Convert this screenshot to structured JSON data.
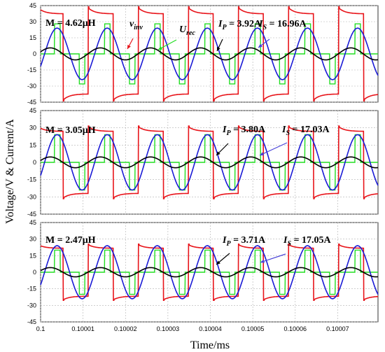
{
  "chart_data": {
    "type": "line",
    "ylabel": "Voltage/V & Current/A",
    "xlabel": "Time/ms",
    "xlim": [
      0.1,
      0.1000795
    ],
    "ylim": [
      -45,
      45
    ],
    "y_ticks": [
      45,
      30,
      15,
      0,
      -15,
      -30,
      -45
    ],
    "x_ticks": [
      "0.1",
      "0.10001",
      "0.10002",
      "0.10003",
      "0.10004",
      "0.10005",
      "0.10006",
      "0.10007"
    ],
    "grid": true,
    "period_ms": 1.18e-05,
    "series_styles": [
      {
        "id": "v_inv",
        "color": "#e8141a"
      },
      {
        "id": "u_rec",
        "color": "#22dd22"
      },
      {
        "id": "i_p",
        "color": "#000000"
      },
      {
        "id": "i_s",
        "color": "#1a1ad6"
      }
    ],
    "panels": [
      {
        "M_label": "M = 4.62μH",
        "Ip_label": "I",
        "Ip_sub": "P",
        "Ip_value": " = 3.92A",
        "Is_label": "I",
        "Is_sub": "S",
        "Is_value": " = 16.96A",
        "vinv_label": "v",
        "vinv_sub": "inv",
        "urec_label": "U",
        "urec_sub": "rec",
        "v_inv_amp": 43,
        "u_rec_amp": 28,
        "i_p_amp": 5.6,
        "i_s_amp": 24,
        "i_s_phase": -0.5,
        "i_p_phase": 0.35,
        "v_inv_offset": 0.05
      },
      {
        "M_label": "M = 3.05μH",
        "Ip_label": "I",
        "Ip_sub": "P",
        "Ip_value": " = 3.80A",
        "Is_label": "I",
        "Is_sub": "S",
        "Is_value": " = 17.03A",
        "v_inv_amp": 31,
        "u_rec_amp": 24,
        "i_p_amp": 4.7,
        "i_s_amp": 24,
        "i_s_phase": -0.5,
        "i_p_phase": 0.35,
        "v_inv_offset": 0.05
      },
      {
        "M_label": "M = 2.47μH",
        "Ip_label": "I",
        "Ip_sub": "P",
        "Ip_value": " = 3.71A",
        "Is_label": "I",
        "Is_sub": "S",
        "Is_value": " = 17.05A",
        "v_inv_amp": 25,
        "u_rec_amp": 20,
        "i_p_amp": 4.2,
        "i_s_amp": 24,
        "i_s_phase": -0.5,
        "i_p_phase": 0.35,
        "v_inv_offset": 0.05
      }
    ]
  }
}
